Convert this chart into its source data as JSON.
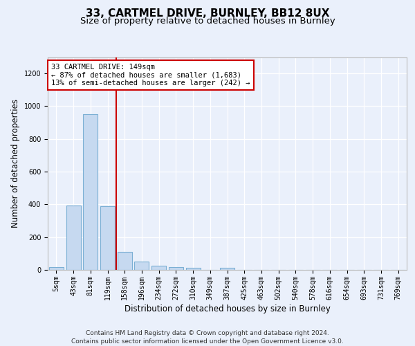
{
  "title_line1": "33, CARTMEL DRIVE, BURNLEY, BB12 8UX",
  "title_line2": "Size of property relative to detached houses in Burnley",
  "xlabel": "Distribution of detached houses by size in Burnley",
  "ylabel": "Number of detached properties",
  "categories": [
    "5sqm",
    "43sqm",
    "81sqm",
    "119sqm",
    "158sqm",
    "196sqm",
    "234sqm",
    "272sqm",
    "310sqm",
    "349sqm",
    "387sqm",
    "425sqm",
    "463sqm",
    "502sqm",
    "540sqm",
    "578sqm",
    "616sqm",
    "654sqm",
    "693sqm",
    "731sqm",
    "769sqm"
  ],
  "values": [
    15,
    395,
    950,
    390,
    108,
    52,
    25,
    18,
    14,
    0,
    14,
    0,
    0,
    0,
    0,
    0,
    0,
    0,
    0,
    0,
    0
  ],
  "bar_color": "#c6d9f0",
  "bar_edge_color": "#7bafd4",
  "vline_x_index": 4,
  "vline_color": "#cc0000",
  "annotation_text": "33 CARTMEL DRIVE: 149sqm\n← 87% of detached houses are smaller (1,683)\n13% of semi-detached houses are larger (242) →",
  "annotation_box_color": "#ffffff",
  "annotation_box_edge": "#cc0000",
  "ylim": [
    0,
    1300
  ],
  "yticks": [
    0,
    200,
    400,
    600,
    800,
    1000,
    1200
  ],
  "footnote": "Contains HM Land Registry data © Crown copyright and database right 2024.\nContains public sector information licensed under the Open Government Licence v3.0.",
  "bg_color": "#eaf0fb",
  "plot_bg_color": "#eaf0fb",
  "grid_color": "#ffffff",
  "title_fontsize": 11,
  "subtitle_fontsize": 9.5,
  "axis_label_fontsize": 8.5,
  "tick_fontsize": 7,
  "footnote_fontsize": 6.5
}
